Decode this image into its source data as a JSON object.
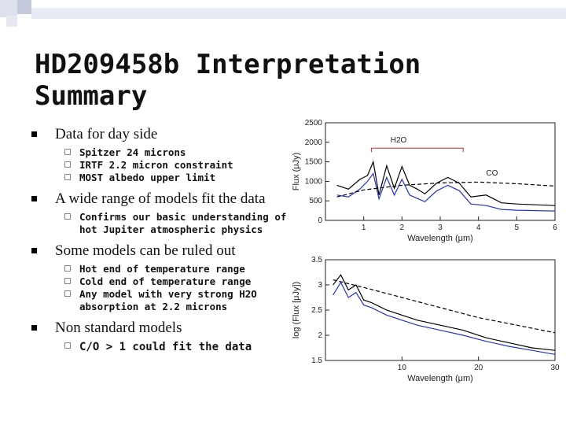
{
  "slide": {
    "title": "HD209458b Interpretation Summary",
    "bullets": [
      {
        "text": "Data for day side",
        "sub": [
          "Spitzer 24 microns",
          "IRTF 2.2 micron constraint",
          "MOST albedo upper limit"
        ]
      },
      {
        "text": "A wide range of models fit the data",
        "sub": [
          "Confirms our basic understanding of hot Jupiter atmospheric physics"
        ]
      },
      {
        "text": "Some models can be ruled out",
        "sub": [
          "Hot end of temperature range",
          "Cold end of temperature range",
          "Any model with very strong H2O absorption at 2.2 microns"
        ]
      },
      {
        "text": "Non standard models",
        "sub": [
          "C/O > 1 could fit the data"
        ]
      }
    ]
  },
  "chart_data": [
    {
      "type": "line",
      "xlabel": "Wavelength (μm)",
      "ylabel": "Flux (μJy)",
      "xlim": [
        0,
        6
      ],
      "ylim": [
        0,
        2500
      ],
      "xticks": [
        "1",
        "2",
        "3",
        "4",
        "5",
        "6"
      ],
      "yticks": [
        "0",
        "500",
        "1000",
        "1500",
        "2000",
        "2500"
      ],
      "annotations": [
        "H2O",
        "CO"
      ],
      "series": [
        {
          "color": "#000000",
          "x": [
            0.3,
            0.6,
            0.9,
            1.1,
            1.25,
            1.4,
            1.6,
            1.8,
            2.0,
            2.2,
            2.4,
            2.6,
            2.9,
            3.2,
            3.5,
            3.8,
            4.2,
            4.6,
            5.0,
            5.5,
            6.0
          ],
          "y": [
            900,
            800,
            1050,
            1150,
            1500,
            650,
            1400,
            820,
            1380,
            900,
            800,
            680,
            950,
            1100,
            950,
            600,
            650,
            450,
            420,
            400,
            380
          ]
        },
        {
          "color": "#2233cc",
          "x": [
            0.3,
            0.6,
            0.9,
            1.1,
            1.25,
            1.4,
            1.6,
            1.8,
            2.0,
            2.2,
            2.4,
            2.6,
            2.9,
            3.2,
            3.5,
            3.8,
            4.2,
            4.6,
            5.0,
            5.5,
            6.0
          ],
          "y": [
            650,
            600,
            800,
            1000,
            1200,
            550,
            1100,
            650,
            1050,
            650,
            560,
            480,
            750,
            900,
            760,
            420,
            380,
            280,
            260,
            250,
            240
          ]
        },
        {
          "color": "#000000",
          "dashed": true,
          "x": [
            0.3,
            1,
            2,
            3,
            4,
            5,
            6
          ],
          "y": [
            600,
            780,
            900,
            960,
            980,
            940,
            880
          ]
        }
      ]
    },
    {
      "type": "line",
      "xlabel": "Wavelength (μm)",
      "ylabel": "log (Flux [μJy])",
      "xlim": [
        0,
        30
      ],
      "ylim": [
        1.5,
        3.5
      ],
      "xticks": [
        "10",
        "20",
        "30"
      ],
      "yticks": [
        "1.5",
        "2",
        "2.5",
        "3",
        "3.5"
      ],
      "series": [
        {
          "color": "#000000",
          "x": [
            1,
            2,
            3,
            4,
            5,
            6,
            8,
            10,
            12,
            15,
            18,
            21,
            24,
            27,
            30
          ],
          "y": [
            3.0,
            3.2,
            2.9,
            3.0,
            2.7,
            2.65,
            2.5,
            2.4,
            2.3,
            2.2,
            2.1,
            1.95,
            1.85,
            1.75,
            1.7
          ]
        },
        {
          "color": "#2233cc",
          "x": [
            1,
            2,
            3,
            4,
            5,
            6,
            8,
            10,
            12,
            15,
            18,
            21,
            24,
            27,
            30
          ],
          "y": [
            2.8,
            3.05,
            2.75,
            2.85,
            2.6,
            2.55,
            2.4,
            2.3,
            2.2,
            2.1,
            2.0,
            1.88,
            1.78,
            1.7,
            1.62
          ]
        },
        {
          "color": "#000000",
          "dashed": true,
          "x": [
            1,
            5,
            10,
            15,
            20,
            25,
            30
          ],
          "y": [
            3.1,
            2.95,
            2.75,
            2.55,
            2.35,
            2.2,
            2.05
          ]
        }
      ]
    }
  ]
}
